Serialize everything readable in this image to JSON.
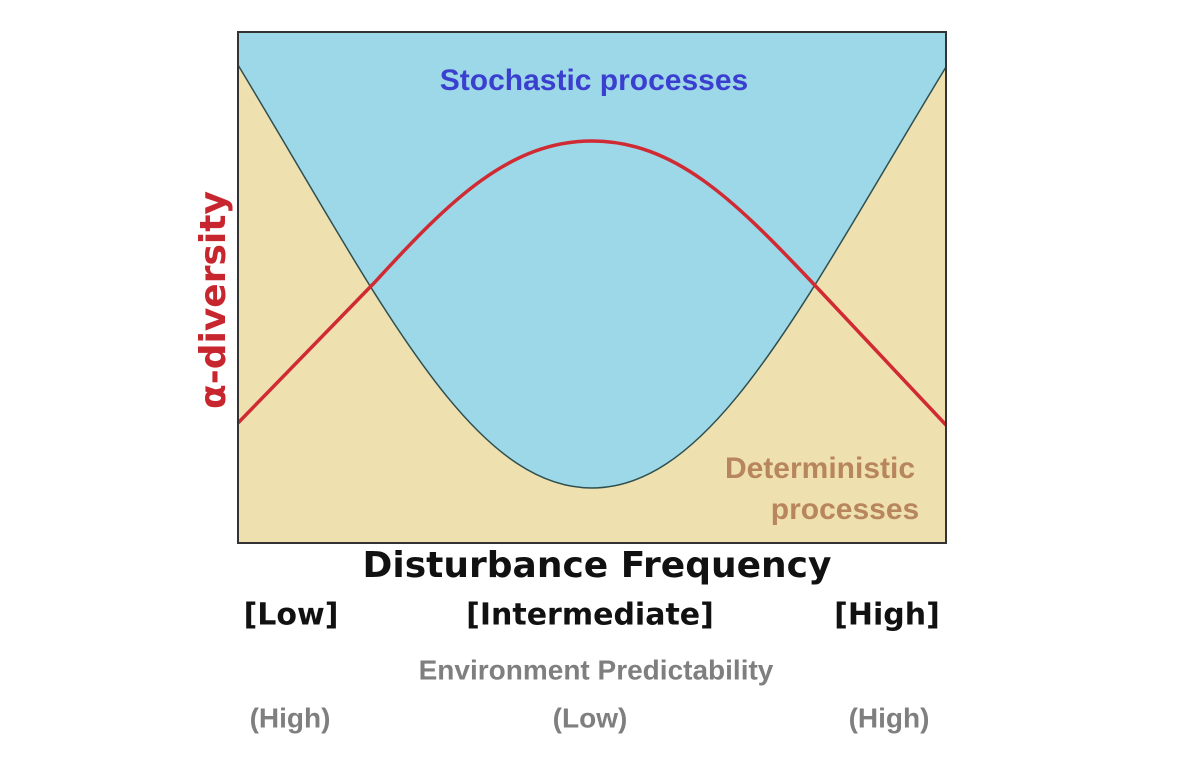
{
  "diagram": {
    "stochastic_label": "Stochastic processes",
    "deterministic_label": [
      "Deterministic",
      "processes"
    ],
    "y_axis_label": "α-diversity",
    "x_axis": {
      "title": "Disturbance Frequency",
      "levels": [
        "[Low]",
        "[Intermediate]",
        "[High]"
      ]
    },
    "secondary_axis": {
      "title": "Environment Predictability",
      "levels": [
        "(High)",
        "(Low)",
        "(High)"
      ]
    }
  }
}
